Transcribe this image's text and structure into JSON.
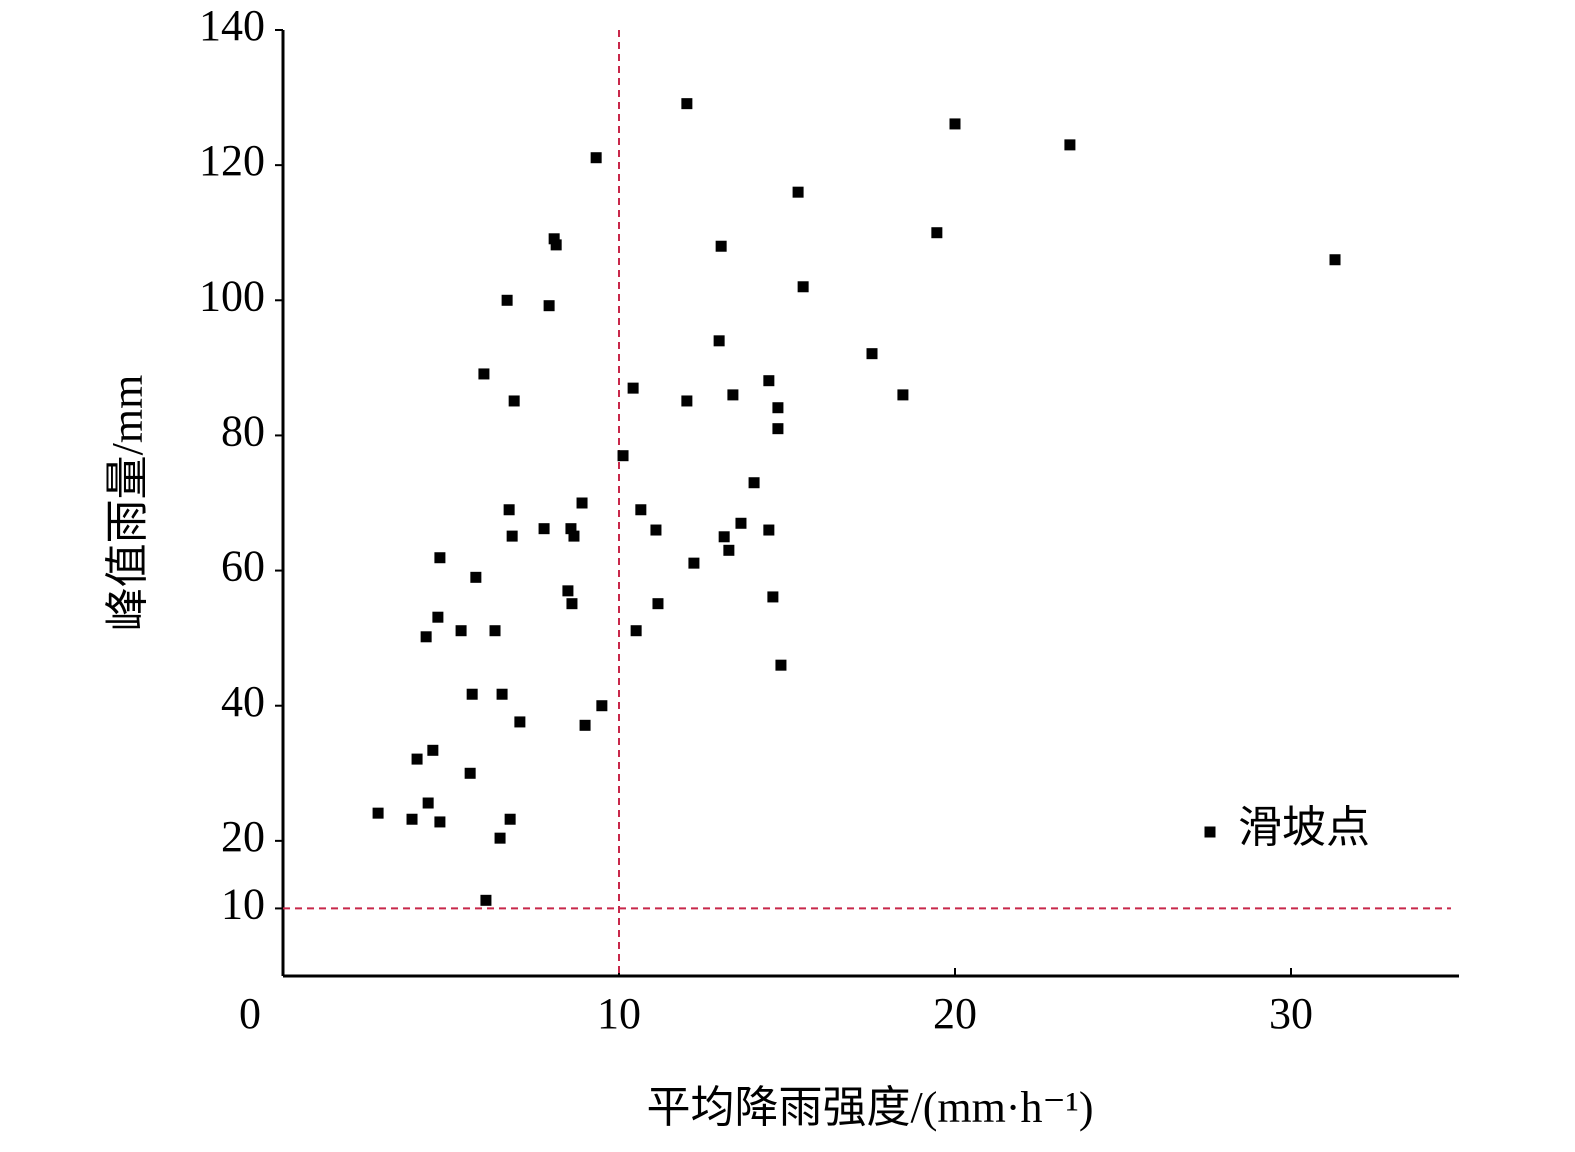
{
  "chart_data": {
    "type": "scatter",
    "x_label": "平均降雨强度/(mm·h⁻¹)",
    "y_label": "峰值雨量/mm",
    "xlim": [
      0,
      35
    ],
    "ylim": [
      0,
      140
    ],
    "xticks": [
      0,
      10,
      20,
      30
    ],
    "yticks": [
      10,
      20,
      40,
      60,
      80,
      100,
      120,
      140
    ],
    "threshold_x": 10,
    "threshold_y": 10,
    "threshold_color": "#c8284a",
    "legend_position": "lower right",
    "series": [
      {
        "name": "滑坡点",
        "color": "#000000",
        "x": [
          2.83,
          3.84,
          4.32,
          4.67,
          3.99,
          4.46,
          4.26,
          4.61,
          4.67,
          5.3,
          5.57,
          5.63,
          5.74,
          5.98,
          6.04,
          6.31,
          6.46,
          6.52,
          6.67,
          6.73,
          6.76,
          6.82,
          6.88,
          7.05,
          7.77,
          7.92,
          8.07,
          8.13,
          8.48,
          8.57,
          8.6,
          8.66,
          8.9,
          8.99,
          9.32,
          9.49,
          10.12,
          10.42,
          10.51,
          10.65,
          11.1,
          11.16,
          12.02,
          12.02,
          12.23,
          12.98,
          13.04,
          13.13,
          13.27,
          13.39,
          13.63,
          14.02,
          14.46,
          14.46,
          14.58,
          14.73,
          14.73,
          14.82,
          15.33,
          15.48,
          17.53,
          18.45,
          19.46,
          20.0,
          23.42,
          31.31
        ],
        "values": [
          24.1,
          23.2,
          25.6,
          22.8,
          32.1,
          33.4,
          50.2,
          53.1,
          61.9,
          51.1,
          30.0,
          41.7,
          59.0,
          89.1,
          11.2,
          51.1,
          20.4,
          41.7,
          100.0,
          69.0,
          23.2,
          65.1,
          85.1,
          37.6,
          66.2,
          99.2,
          109.1,
          108.2,
          57.0,
          66.2,
          55.1,
          65.1,
          70.0,
          37.1,
          121.1,
          40.0,
          77.0,
          87.0,
          51.1,
          69.0,
          66.0,
          55.1,
          129.1,
          85.1,
          61.1,
          94.0,
          108.0,
          65.0,
          63.0,
          86.0,
          67.0,
          73.0,
          88.1,
          66.0,
          56.1,
          84.1,
          81.0,
          46.0,
          116.0,
          102.0,
          92.1,
          86.0,
          110.0,
          126.1,
          123.0,
          106.0
        ]
      }
    ]
  }
}
